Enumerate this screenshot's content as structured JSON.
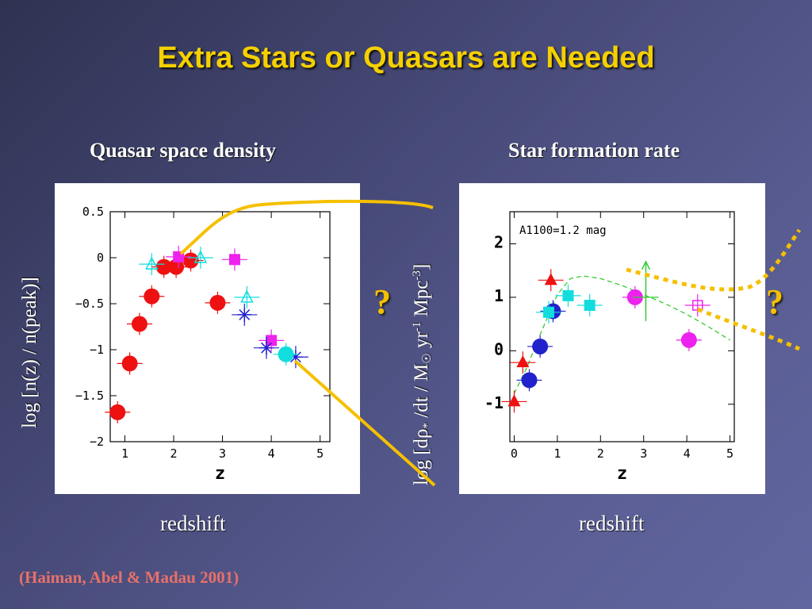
{
  "title": "Extra Stars or Quasars are Needed",
  "left_heading": "Quasar space density",
  "right_heading": "Star formation rate",
  "left_xlabel": "redshift",
  "right_xlabel": "redshift",
  "citation": "(Haiman, Abel & Madau 2001)",
  "question_mark": "?",
  "left_ylabel": "log [n(z) / n(peak)]",
  "right_ylabel_parts": [
    "log [d",
    "ρ",
    "*",
    " /dt  /  M",
    "☉",
    " yr",
    "-1",
    " Mpc",
    "-3",
    "]"
  ],
  "colors": {
    "title": "#f5d000",
    "arrow": "#f5c000",
    "citation": "#e8706a",
    "red": "#ee1111",
    "magenta": "#ee22ee",
    "cyan": "#11dddd",
    "blue": "#2222cc",
    "green": "#33cc33"
  },
  "chart_data": [
    {
      "type": "scatter",
      "xlabel": "z",
      "ylabel": "",
      "xlim": [
        0.7,
        5.2
      ],
      "ylim": [
        -2,
        0.5
      ],
      "xticks": [
        "1",
        "2",
        "3",
        "4",
        "5"
      ],
      "yticks": [
        "0.5",
        "0",
        "−0.5",
        "−1",
        "−1.5",
        "−2"
      ],
      "series": [
        {
          "marker": "circle",
          "color": "#ee1111",
          "points": [
            [
              0.85,
              -1.68
            ],
            [
              1.1,
              -1.15
            ],
            [
              1.3,
              -0.72
            ],
            [
              1.55,
              -0.42
            ],
            [
              1.8,
              -0.1
            ],
            [
              2.05,
              -0.1
            ],
            [
              2.35,
              -0.03
            ],
            [
              2.9,
              -0.49
            ]
          ]
        },
        {
          "marker": "square",
          "color": "#ee22ee",
          "points": [
            [
              2.1,
              0.01
            ],
            [
              3.25,
              -0.02
            ],
            [
              4.0,
              -0.9
            ]
          ]
        },
        {
          "marker": "triangle-open",
          "color": "#11dddd",
          "points": [
            [
              1.55,
              -0.07
            ],
            [
              2.55,
              0.0
            ],
            [
              3.5,
              -0.43
            ]
          ]
        },
        {
          "marker": "asterisk",
          "color": "#2222cc",
          "points": [
            [
              3.45,
              -0.62
            ],
            [
              3.9,
              -0.98
            ],
            [
              4.5,
              -1.08
            ]
          ]
        },
        {
          "marker": "circle",
          "color": "#11dddd",
          "points": [
            [
              4.3,
              -1.05
            ]
          ]
        }
      ]
    },
    {
      "type": "scatter",
      "xlabel": "z",
      "ylabel": "",
      "annotation": "A1100=1.2 mag",
      "xlim": [
        -0.1,
        5.1
      ],
      "ylim": [
        -1.7,
        2.6
      ],
      "xticks": [
        "0",
        "1",
        "2",
        "3",
        "4",
        "5"
      ],
      "yticks": [
        "2",
        "1",
        "0",
        "-1"
      ],
      "series": [
        {
          "marker": "triangle",
          "color": "#ee1111",
          "points": [
            [
              0.0,
              -0.95
            ],
            [
              0.2,
              -0.22
            ],
            [
              0.85,
              1.32
            ]
          ]
        },
        {
          "marker": "circle",
          "color": "#2222cc",
          "points": [
            [
              0.35,
              -0.55
            ],
            [
              0.6,
              0.08
            ],
            [
              0.9,
              0.74
            ]
          ]
        },
        {
          "marker": "square",
          "color": "#11dddd",
          "points": [
            [
              0.8,
              0.72
            ],
            [
              1.25,
              1.03
            ],
            [
              1.75,
              0.85
            ]
          ]
        },
        {
          "marker": "circle",
          "color": "#ee22ee",
          "points": [
            [
              2.8,
              1.0
            ],
            [
              4.05,
              0.2
            ]
          ]
        },
        {
          "marker": "square-open",
          "color": "#ee22ee",
          "points": [
            [
              4.25,
              0.85
            ]
          ]
        },
        {
          "marker": "arrow-up",
          "color": "#33cc33",
          "points": [
            [
              3.05,
              1.0
            ]
          ]
        }
      ],
      "model_curve": [
        [
          0.0,
          -0.8
        ],
        [
          0.3,
          -0.3
        ],
        [
          0.6,
          0.3
        ],
        [
          1.0,
          1.05
        ],
        [
          1.3,
          1.35
        ],
        [
          1.6,
          1.4
        ],
        [
          2.0,
          1.35
        ],
        [
          2.5,
          1.22
        ],
        [
          3.0,
          1.05
        ],
        [
          3.5,
          0.88
        ],
        [
          4.0,
          0.68
        ],
        [
          4.5,
          0.45
        ],
        [
          5.0,
          0.2
        ]
      ]
    }
  ]
}
